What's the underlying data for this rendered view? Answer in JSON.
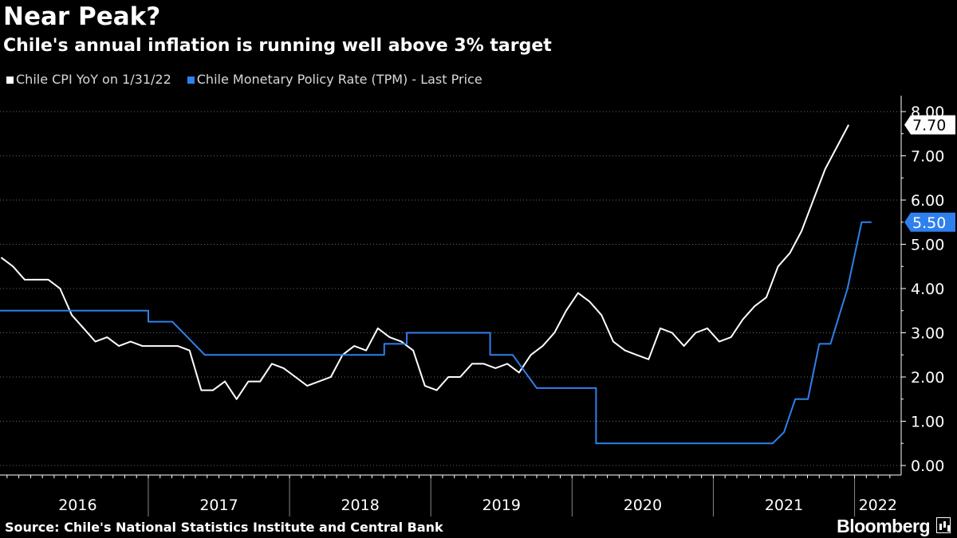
{
  "header": {
    "title": "Near Peak?",
    "subtitle": "Chile's annual inflation is running well above 3% target"
  },
  "legend": [
    {
      "label": "Chile CPI YoY on 1/31/22",
      "color": "#ffffff"
    },
    {
      "label": "Chile Monetary Policy Rate (TPM) - Last Price",
      "color": "#2f80ed"
    }
  ],
  "footer": {
    "source": "Source: Chile's National Statistics Institute and Central Bank",
    "brand": "Bloomberg"
  },
  "chart_data": {
    "type": "line",
    "x_axis": {
      "range": [
        2015.95,
        2022.33
      ],
      "year_labels": [
        "2016",
        "2017",
        "2018",
        "2019",
        "2020",
        "2021",
        "2022"
      ]
    },
    "y_axis": {
      "side": "right",
      "range": [
        0,
        8
      ],
      "ticks": [
        0,
        1,
        2,
        3,
        4,
        5,
        6,
        7,
        8
      ],
      "tick_labels": [
        "0.00",
        "1.00",
        "2.00",
        "3.00",
        "4.00",
        "5.00",
        "6.00",
        "7.00",
        "8.00"
      ]
    },
    "grid": "horizontal dotted",
    "legend_position": "top-left",
    "series": [
      {
        "name": "Chile CPI YoY on 1/31/22",
        "color": "#ffffff",
        "last_value_label": "7.70",
        "points": [
          [
            2015.958,
            4.7
          ],
          [
            2016.042,
            4.5
          ],
          [
            2016.125,
            4.2
          ],
          [
            2016.208,
            4.2
          ],
          [
            2016.292,
            4.2
          ],
          [
            2016.375,
            4.0
          ],
          [
            2016.458,
            3.4
          ],
          [
            2016.542,
            3.1
          ],
          [
            2016.625,
            2.8
          ],
          [
            2016.708,
            2.9
          ],
          [
            2016.792,
            2.7
          ],
          [
            2016.875,
            2.8
          ],
          [
            2016.958,
            2.7
          ],
          [
            2017.042,
            2.7
          ],
          [
            2017.125,
            2.7
          ],
          [
            2017.208,
            2.7
          ],
          [
            2017.292,
            2.6
          ],
          [
            2017.375,
            1.7
          ],
          [
            2017.458,
            1.7
          ],
          [
            2017.542,
            1.9
          ],
          [
            2017.625,
            1.5
          ],
          [
            2017.708,
            1.9
          ],
          [
            2017.792,
            1.9
          ],
          [
            2017.875,
            2.3
          ],
          [
            2017.958,
            2.2
          ],
          [
            2018.042,
            2.0
          ],
          [
            2018.125,
            1.8
          ],
          [
            2018.208,
            1.9
          ],
          [
            2018.292,
            2.0
          ],
          [
            2018.375,
            2.5
          ],
          [
            2018.458,
            2.7
          ],
          [
            2018.542,
            2.6
          ],
          [
            2018.625,
            3.1
          ],
          [
            2018.708,
            2.9
          ],
          [
            2018.792,
            2.8
          ],
          [
            2018.875,
            2.6
          ],
          [
            2018.958,
            1.8
          ],
          [
            2019.042,
            1.7
          ],
          [
            2019.125,
            2.0
          ],
          [
            2019.208,
            2.0
          ],
          [
            2019.292,
            2.3
          ],
          [
            2019.375,
            2.3
          ],
          [
            2019.458,
            2.2
          ],
          [
            2019.542,
            2.3
          ],
          [
            2019.625,
            2.1
          ],
          [
            2019.708,
            2.5
          ],
          [
            2019.792,
            2.7
          ],
          [
            2019.875,
            3.0
          ],
          [
            2019.958,
            3.5
          ],
          [
            2020.042,
            3.9
          ],
          [
            2020.125,
            3.7
          ],
          [
            2020.208,
            3.4
          ],
          [
            2020.292,
            2.8
          ],
          [
            2020.375,
            2.6
          ],
          [
            2020.458,
            2.5
          ],
          [
            2020.542,
            2.4
          ],
          [
            2020.625,
            3.1
          ],
          [
            2020.708,
            3.0
          ],
          [
            2020.792,
            2.7
          ],
          [
            2020.875,
            3.0
          ],
          [
            2020.958,
            3.1
          ],
          [
            2021.042,
            2.8
          ],
          [
            2021.125,
            2.9
          ],
          [
            2021.208,
            3.3
          ],
          [
            2021.292,
            3.6
          ],
          [
            2021.375,
            3.8
          ],
          [
            2021.458,
            4.5
          ],
          [
            2021.542,
            4.8
          ],
          [
            2021.625,
            5.3
          ],
          [
            2021.708,
            6.0
          ],
          [
            2021.792,
            6.7
          ],
          [
            2021.875,
            7.2
          ],
          [
            2021.958,
            7.7
          ]
        ]
      },
      {
        "name": "Chile Monetary Policy Rate (TPM) - Last Price",
        "color": "#2f80ed",
        "last_value_label": "5.50",
        "points": [
          [
            2015.95,
            3.5
          ],
          [
            2017.0,
            3.5
          ],
          [
            2017.0,
            3.25
          ],
          [
            2017.17,
            3.25
          ],
          [
            2017.4,
            2.5
          ],
          [
            2018.67,
            2.5
          ],
          [
            2018.67,
            2.75
          ],
          [
            2018.83,
            2.75
          ],
          [
            2018.83,
            3.0
          ],
          [
            2019.42,
            3.0
          ],
          [
            2019.42,
            2.5
          ],
          [
            2019.58,
            2.5
          ],
          [
            2019.75,
            1.75
          ],
          [
            2020.17,
            1.75
          ],
          [
            2020.17,
            0.5
          ],
          [
            2021.42,
            0.5
          ],
          [
            2021.5,
            0.75
          ],
          [
            2021.58,
            1.5
          ],
          [
            2021.67,
            1.5
          ],
          [
            2021.75,
            2.75
          ],
          [
            2021.83,
            2.75
          ],
          [
            2021.95,
            4.0
          ],
          [
            2022.05,
            5.5
          ],
          [
            2022.12,
            5.5
          ]
        ]
      }
    ]
  }
}
